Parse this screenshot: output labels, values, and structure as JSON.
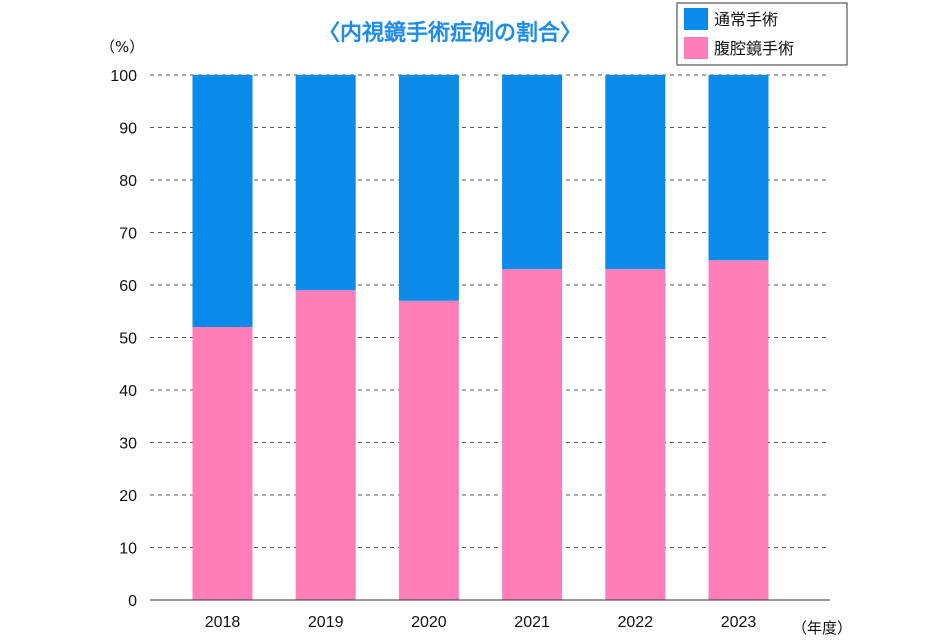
{
  "chart_data": {
    "type": "bar",
    "stacked": true,
    "title": "〈内視鏡手術症例の割合〉",
    "ylabel": "（%）",
    "xlabel": "（年度）",
    "categories": [
      "2018",
      "2019",
      "2020",
      "2021",
      "2022",
      "2023"
    ],
    "ylim": [
      0,
      100
    ],
    "yticks": [
      0,
      10,
      20,
      30,
      40,
      50,
      60,
      70,
      80,
      90,
      100
    ],
    "grid": true,
    "legend_position": "top-right",
    "series": [
      {
        "name": "腹腔鏡手術",
        "color": "#ff7eb8",
        "values": [
          52,
          59,
          57,
          63,
          63,
          64.7
        ]
      },
      {
        "name": "通常手術",
        "color": "#0a8be9",
        "values": [
          48,
          41,
          43,
          37,
          37,
          35.3
        ]
      }
    ]
  }
}
